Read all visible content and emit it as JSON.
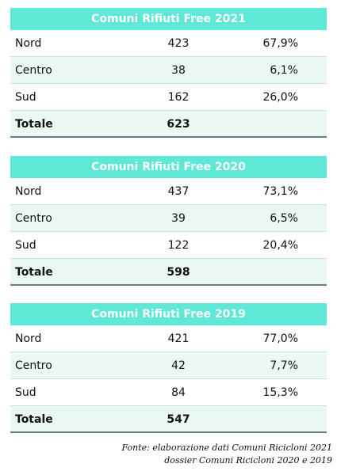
{
  "tables": [
    {
      "title": "Comuni Rifiuti Free 2021",
      "rows": [
        {
          "area": "Nord",
          "count": "423",
          "pct": "67,9%"
        },
        {
          "area": "Centro",
          "count": "38",
          "pct": "6,1%"
        },
        {
          "area": "Sud",
          "count": "162",
          "pct": "26,0%"
        }
      ],
      "total": {
        "label": "Totale",
        "count": "623"
      }
    },
    {
      "title": "Comuni Rifiuti Free 2020",
      "rows": [
        {
          "area": "Nord",
          "count": "437",
          "pct": "73,1%"
        },
        {
          "area": "Centro",
          "count": "39",
          "pct": "6,5%"
        },
        {
          "area": "Sud",
          "count": "122",
          "pct": "20,4%"
        }
      ],
      "total": {
        "label": "Totale",
        "count": "598"
      }
    },
    {
      "title": "Comuni Rifiuti Free 2019",
      "rows": [
        {
          "area": "Nord",
          "count": "421",
          "pct": "77,0%"
        },
        {
          "area": "Centro",
          "count": "42",
          "pct": "7,7%"
        },
        {
          "area": "Sud",
          "count": "84",
          "pct": "15,3%"
        }
      ],
      "total": {
        "label": "Totale",
        "count": "547"
      }
    }
  ],
  "footnote": {
    "line1": "Fonte: elaborazione dati Comuni Ricicloni 2021",
    "line2": "dossier Comuni Ricicloni 2020 e 2019"
  },
  "colors": {
    "header_bg": "#5ee8d6",
    "row_alt_bg": "#eaf8f1"
  }
}
